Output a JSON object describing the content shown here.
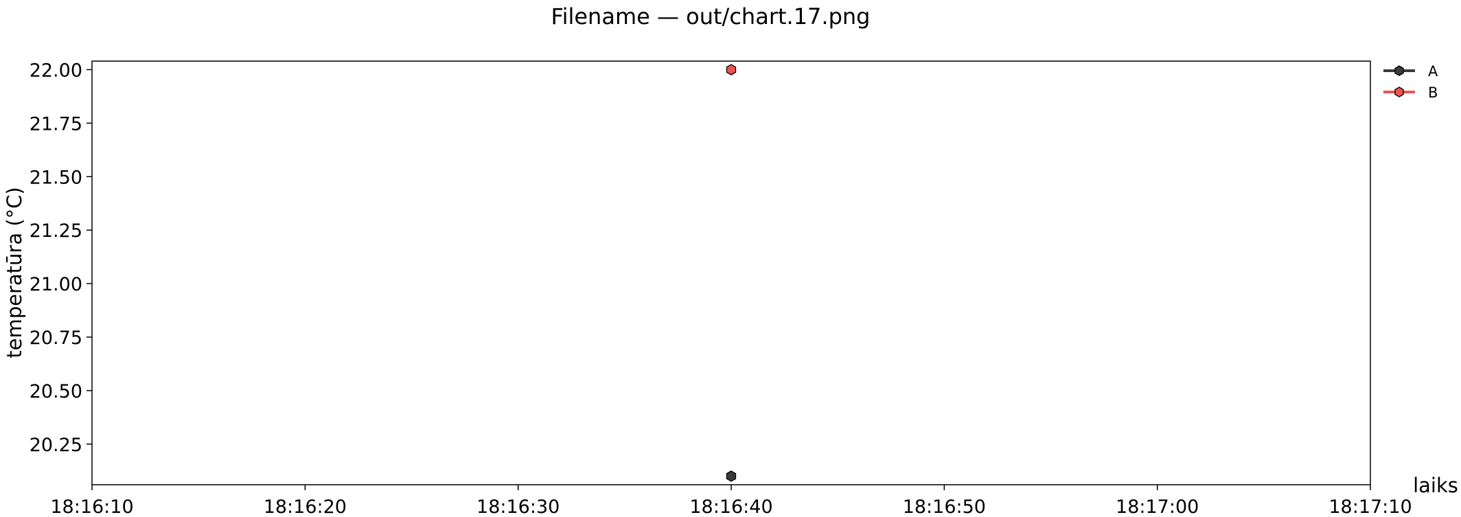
{
  "chart_data": {
    "type": "line",
    "title": "Filename — out/chart.17.png",
    "xlabel": "laiks",
    "ylabel": "temperatūra (°C)",
    "x_ticks": [
      "18:16:10",
      "18:16:20",
      "18:16:30",
      "18:16:40",
      "18:16:50",
      "18:17:00",
      "18:17:10"
    ],
    "y_ticks": [
      "20.25",
      "20.50",
      "20.75",
      "21.00",
      "21.25",
      "21.50",
      "21.75",
      "22.00"
    ],
    "xlim": [
      "18:16:10",
      "18:17:10"
    ],
    "ylim": [
      20.06,
      22.04
    ],
    "grid": false,
    "legend_position": "outside-right-top",
    "series": [
      {
        "name": "A",
        "color": "#3a3a3a",
        "marker": "hexagon",
        "points": [
          {
            "x": "18:16:40",
            "y": 20.1
          }
        ]
      },
      {
        "name": "B",
        "color": "#ef5350",
        "marker": "hexagon",
        "points": [
          {
            "x": "18:16:40",
            "y": 22.0
          }
        ]
      }
    ]
  }
}
